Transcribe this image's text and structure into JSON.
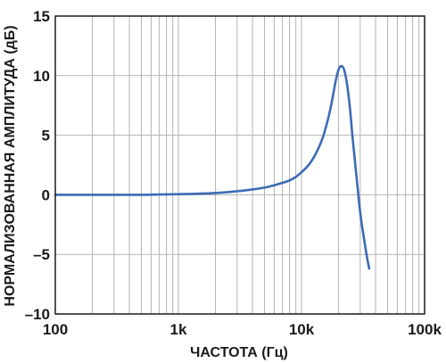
{
  "chart_data": {
    "type": "line",
    "xlabel": "ЧАСТОТА (Гц)",
    "ylabel": "НОРМАЛИЗОВАННАЯ АМПЛИТУДА (дБ)",
    "x_scale": "log",
    "xlim": [
      100,
      100000
    ],
    "ylim": [
      -10,
      15
    ],
    "x_ticks": [
      100,
      1000,
      10000,
      100000
    ],
    "x_tick_labels": [
      "100",
      "1k",
      "10k",
      "100k"
    ],
    "y_ticks": [
      15,
      10,
      5,
      0,
      -5,
      -10
    ],
    "y_tick_labels": [
      "15",
      "10",
      "5",
      "0",
      "–5",
      "–10"
    ],
    "grid": true,
    "series": [
      {
        "color": "#3d6bb5",
        "x": [
          100,
          200,
          500,
          1000,
          2000,
          3000,
          4000,
          5000,
          6000,
          7000,
          8000,
          9000,
          10000,
          11000,
          12000,
          13000,
          14000,
          15000,
          16000,
          17000,
          18000,
          19000,
          20000,
          21000,
          22000,
          23000,
          24000,
          25000,
          26000,
          28000,
          30000,
          32000,
          34000,
          35500
        ],
        "y": [
          0,
          0,
          0,
          0.05,
          0.15,
          0.3,
          0.45,
          0.6,
          0.8,
          1.0,
          1.2,
          1.5,
          1.9,
          2.3,
          2.8,
          3.4,
          4.1,
          4.9,
          5.9,
          7.0,
          8.3,
          9.6,
          10.5,
          10.8,
          10.6,
          9.8,
          8.5,
          6.8,
          4.8,
          1.5,
          -1.5,
          -3.5,
          -5.2,
          -6.2
        ]
      }
    ]
  },
  "colors": {
    "line": "#3d6bb5",
    "grid": "#b3b3b3",
    "frame": "#1a1a1a"
  }
}
